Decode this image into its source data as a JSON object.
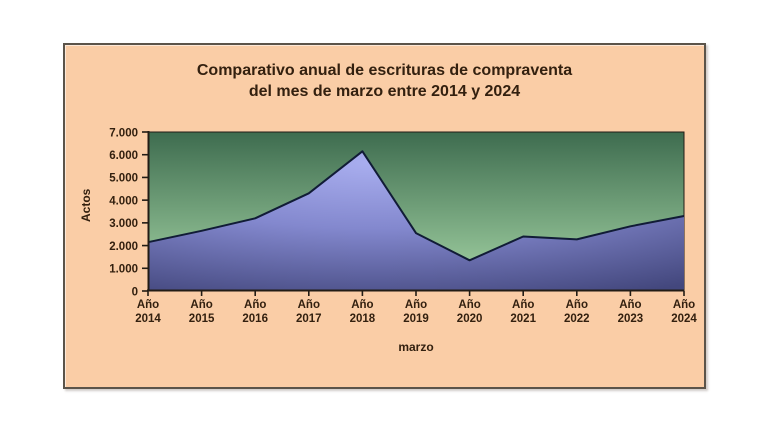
{
  "window": {
    "background": "#ffffff"
  },
  "chart_box": {
    "background": "#FACDA6",
    "border_color": "#5B544A",
    "title_line1": "Comparativo anual de escrituras de compraventa",
    "title_line2": "del mes de marzo entre 2014 y 2024",
    "y_axis_title": "Actos",
    "x_axis_title": "marzo",
    "text_color": "#33200F"
  },
  "chart_data": {
    "type": "area",
    "title": "Comparativo anual de escrituras de compraventa del mes de marzo entre 2014 y 2024",
    "xlabel": "marzo",
    "ylabel": "Actos",
    "categories": [
      "Año 2014",
      "Año 2015",
      "Año 2016",
      "Año 2017",
      "Año 2018",
      "Año 2019",
      "Año 2020",
      "Año 2021",
      "Año 2022",
      "Año 2023",
      "Año 2024"
    ],
    "values": [
      2150,
      2650,
      3200,
      4300,
      6150,
      2550,
      1350,
      2400,
      2270,
      2850,
      3300
    ],
    "ylim": [
      0,
      7000
    ],
    "ytick_step": 1000,
    "ytick_labels": [
      "0",
      "1.000",
      "2.000",
      "3.000",
      "4.000",
      "5.000",
      "6.000",
      "7.000"
    ],
    "grid": false,
    "legend": "none",
    "plot_bg_gradient": {
      "top": "#3E6C4F",
      "bottom": "#A7D7A7"
    },
    "area_gradient": {
      "light": "#A9AEEF",
      "mid": "#8388CE",
      "dark": "#43477D"
    },
    "line_color": "#111C36",
    "axis_color": "#221C15"
  }
}
